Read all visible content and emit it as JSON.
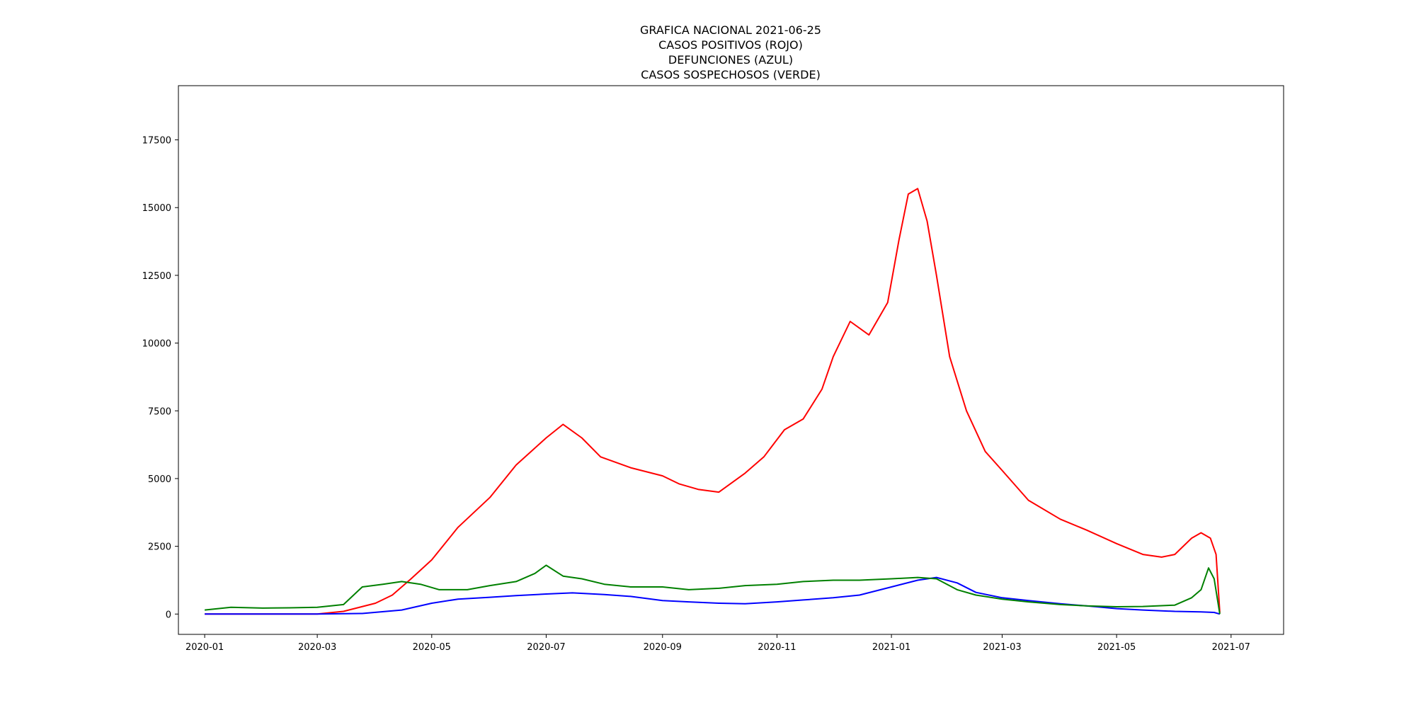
{
  "chart_data": {
    "type": "line",
    "title_lines": [
      "GRAFICA NACIONAL 2021-06-25",
      "CASOS POSITIVOS (ROJO)",
      "DEFUNCIONES (AZUL)",
      "CASOS SOSPECHOSOS (VERDE)"
    ],
    "xlabel": "",
    "ylabel": "",
    "xlim": [
      "2019-12-18",
      "2021-07-29"
    ],
    "ylim": [
      -750,
      19500
    ],
    "x_ticks": [
      "2020-01-01",
      "2020-03-01",
      "2020-05-01",
      "2020-07-01",
      "2020-09-01",
      "2020-11-01",
      "2021-01-01",
      "2021-03-01",
      "2021-05-01",
      "2021-07-01"
    ],
    "x_tick_labels": [
      "2020-01",
      "2020-03",
      "2020-05",
      "2020-07",
      "2020-09",
      "2020-11",
      "2021-01",
      "2021-03",
      "2021-05",
      "2021-07"
    ],
    "y_ticks": [
      0,
      2500,
      5000,
      7500,
      10000,
      12500,
      15000,
      17500
    ],
    "y_tick_labels": [
      "0",
      "2500",
      "5000",
      "7500",
      "10000",
      "12500",
      "15000",
      "17500"
    ],
    "grid": false,
    "legend": "none",
    "series": [
      {
        "color": "#ff0000",
        "x": [
          "2020-01-01",
          "2020-02-01",
          "2020-03-01",
          "2020-03-15",
          "2020-04-01",
          "2020-04-10",
          "2020-04-20",
          "2020-05-01",
          "2020-05-15",
          "2020-06-01",
          "2020-06-15",
          "2020-07-01",
          "2020-07-10",
          "2020-07-20",
          "2020-07-30",
          "2020-08-15",
          "2020-09-01",
          "2020-09-10",
          "2020-09-20",
          "2020-10-01",
          "2020-10-15",
          "2020-10-25",
          "2020-11-05",
          "2020-11-15",
          "2020-11-25",
          "2020-12-01",
          "2020-12-10",
          "2020-12-20",
          "2020-12-30",
          "2021-01-05",
          "2021-01-10",
          "2021-01-15",
          "2021-01-20",
          "2021-01-25",
          "2021-02-01",
          "2021-02-10",
          "2021-02-20",
          "2021-03-01",
          "2021-03-15",
          "2021-04-01",
          "2021-04-15",
          "2021-05-01",
          "2021-05-15",
          "2021-05-25",
          "2021-06-01",
          "2021-06-10",
          "2021-06-15",
          "2021-06-20",
          "2021-06-23",
          "2021-06-25"
        ],
        "values": [
          0,
          0,
          0,
          100,
          400,
          700,
          1300,
          2000,
          3200,
          4300,
          5500,
          6500,
          7000,
          6500,
          5800,
          5400,
          5100,
          4800,
          4600,
          4500,
          5200,
          5800,
          6800,
          7200,
          8300,
          9500,
          10800,
          10300,
          11500,
          13800,
          15500,
          15700,
          14500,
          12500,
          9500,
          7500,
          6000,
          5300,
          4200,
          3500,
          3100,
          2600,
          2200,
          2100,
          2200,
          2800,
          3000,
          2800,
          2200,
          50
        ]
      },
      {
        "color": "#0000ff",
        "x": [
          "2020-01-01",
          "2020-03-01",
          "2020-03-25",
          "2020-04-15",
          "2020-05-01",
          "2020-05-15",
          "2020-06-01",
          "2020-06-15",
          "2020-07-01",
          "2020-07-15",
          "2020-08-01",
          "2020-08-15",
          "2020-09-01",
          "2020-09-15",
          "2020-10-01",
          "2020-10-15",
          "2020-11-01",
          "2020-11-15",
          "2020-12-01",
          "2020-12-15",
          "2021-01-01",
          "2021-01-15",
          "2021-01-25",
          "2021-02-05",
          "2021-02-15",
          "2021-03-01",
          "2021-03-15",
          "2021-04-01",
          "2021-04-15",
          "2021-05-01",
          "2021-05-15",
          "2021-06-01",
          "2021-06-15",
          "2021-06-22",
          "2021-06-25"
        ],
        "values": [
          0,
          0,
          20,
          150,
          400,
          550,
          620,
          680,
          740,
          780,
          720,
          650,
          500,
          450,
          400,
          380,
          450,
          520,
          600,
          700,
          1000,
          1250,
          1350,
          1150,
          800,
          600,
          500,
          380,
          300,
          200,
          150,
          100,
          80,
          60,
          0
        ]
      },
      {
        "color": "#008000",
        "x": [
          "2020-01-01",
          "2020-01-15",
          "2020-02-01",
          "2020-02-15",
          "2020-03-01",
          "2020-03-15",
          "2020-03-25",
          "2020-04-05",
          "2020-04-15",
          "2020-04-25",
          "2020-05-05",
          "2020-05-20",
          "2020-06-01",
          "2020-06-15",
          "2020-06-25",
          "2020-07-01",
          "2020-07-10",
          "2020-07-20",
          "2020-08-01",
          "2020-08-15",
          "2020-09-01",
          "2020-09-15",
          "2020-10-01",
          "2020-10-15",
          "2020-11-01",
          "2020-11-15",
          "2020-12-01",
          "2020-12-15",
          "2021-01-01",
          "2021-01-15",
          "2021-01-25",
          "2021-02-05",
          "2021-02-15",
          "2021-03-01",
          "2021-03-15",
          "2021-04-01",
          "2021-04-15",
          "2021-05-01",
          "2021-05-15",
          "2021-06-01",
          "2021-06-10",
          "2021-06-15",
          "2021-06-19",
          "2021-06-22",
          "2021-06-25"
        ],
        "values": [
          150,
          250,
          220,
          230,
          250,
          350,
          1000,
          1100,
          1200,
          1100,
          900,
          900,
          1050,
          1200,
          1500,
          1800,
          1400,
          1300,
          1100,
          1000,
          1000,
          900,
          950,
          1050,
          1100,
          1200,
          1250,
          1250,
          1300,
          1350,
          1300,
          900,
          700,
          550,
          450,
          350,
          300,
          270,
          280,
          330,
          600,
          900,
          1700,
          1300,
          0
        ]
      }
    ]
  }
}
